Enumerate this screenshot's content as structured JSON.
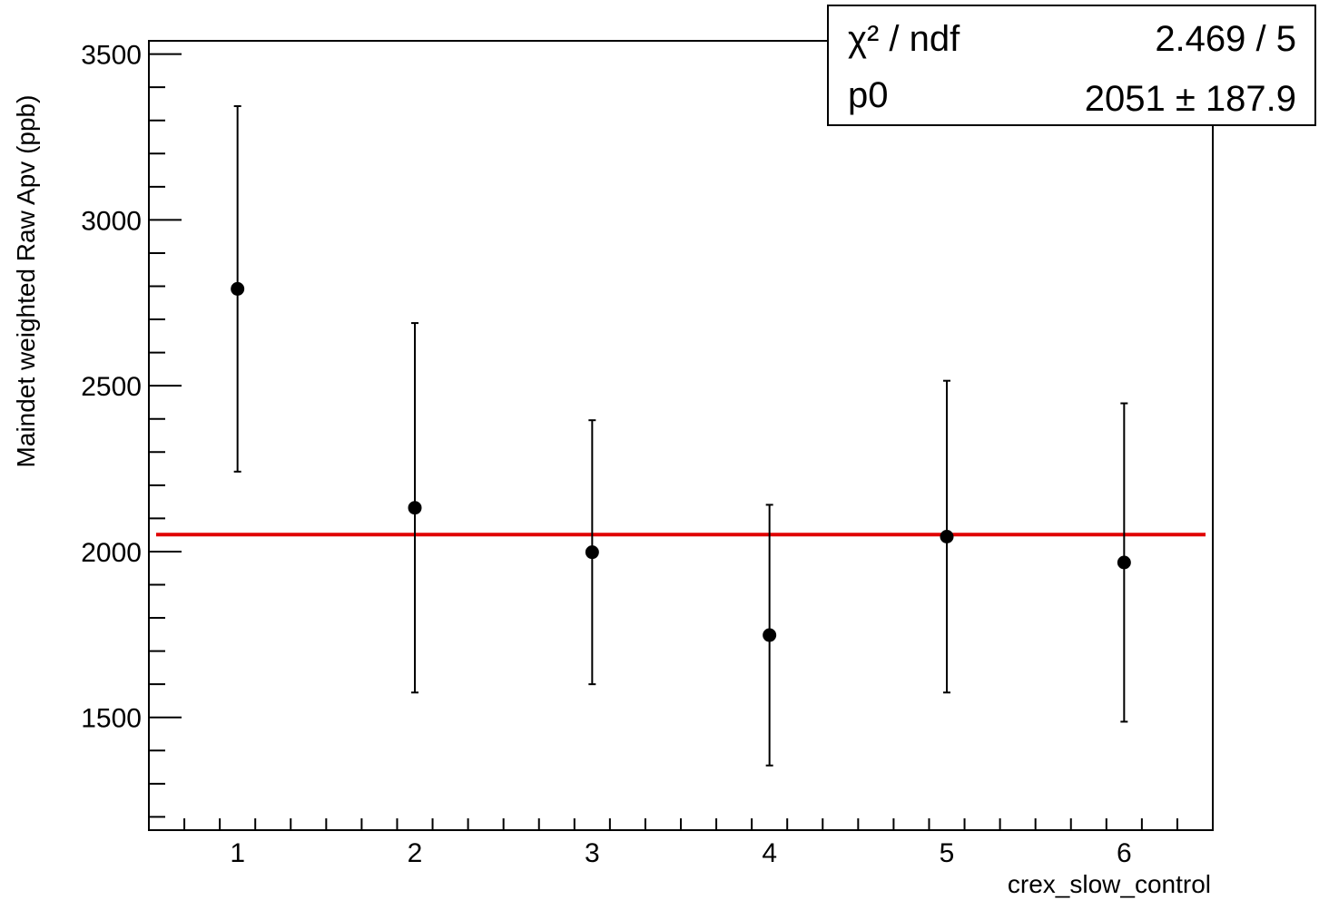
{
  "chart_data": {
    "type": "scatter",
    "title": "",
    "xlabel": "crex_slow_control",
    "ylabel": "Maindet weighted Raw Apv (ppb)",
    "xlim": [
      0.5,
      6.5
    ],
    "ylim": [
      1160,
      3540
    ],
    "xticks": [
      1,
      2,
      3,
      4,
      5,
      6
    ],
    "yticks": [
      1500,
      2000,
      2500,
      3000,
      3500
    ],
    "grid": false,
    "series": [
      {
        "x": [
          1,
          2,
          3,
          4,
          5,
          6
        ],
        "y": [
          2792,
          2132,
          1998,
          1748,
          2045,
          1967
        ],
        "yerr": [
          551,
          557,
          398,
          393,
          470,
          480
        ],
        "marker_color": "#000000"
      }
    ],
    "fit": {
      "value": 2051,
      "color": "#e00000"
    },
    "stats": {
      "chi2_label": "χ² / ndf",
      "chi2_value": "2.469 / 5",
      "p0_label": "p0",
      "p0_value": "2051 ± 187.9",
      "placement": "top-right"
    }
  }
}
